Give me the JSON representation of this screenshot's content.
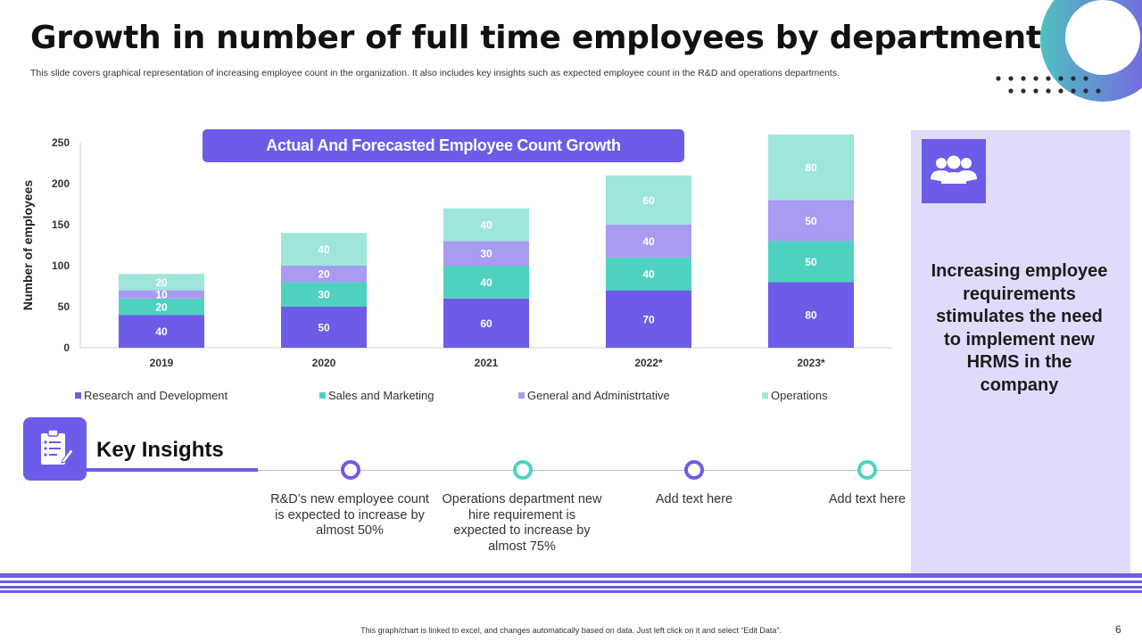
{
  "header": {
    "title": "Growth in number of full time employees by department",
    "subtitle": "This slide covers graphical representation of increasing employee count in the organization. It also includes key insights such as expected employee count in the R&D and operations departments."
  },
  "colors": {
    "accent": "#6c5ce7",
    "teal": "#4fd1c0",
    "lavender": "#a79bf2",
    "mint": "#9ee6dc",
    "panel": "#e0dbfb"
  },
  "chart_data": {
    "type": "bar",
    "stacked": true,
    "title": "Actual And Forecasted Employee Count Growth",
    "xlabel": "",
    "ylabel": "Number of employees",
    "ylim": [
      0,
      250
    ],
    "yticks": [
      0,
      50,
      100,
      150,
      200,
      250
    ],
    "grid": false,
    "legend_position": "bottom",
    "categories": [
      "2019",
      "2020",
      "2021",
      "2022*",
      "2023*"
    ],
    "series": [
      {
        "name": "Research and Development",
        "color": "#6c5ce7",
        "values": [
          40,
          50,
          60,
          70,
          80
        ]
      },
      {
        "name": "Sales and Marketing",
        "color": "#4fd1c0",
        "values": [
          20,
          30,
          40,
          40,
          50
        ]
      },
      {
        "name": "General and Administrtative",
        "color": "#a79bf2",
        "values": [
          10,
          20,
          30,
          40,
          50
        ]
      },
      {
        "name": "Operations",
        "color": "#9ee6dc",
        "values": [
          20,
          40,
          40,
          60,
          80
        ]
      }
    ]
  },
  "side_panel": {
    "icon": "users-group-icon",
    "text": "Increasing employee requirements stimulates the need to implement new HRMS in the company"
  },
  "key_insights": {
    "title": "Key Insights",
    "icon": "clipboard-checklist-icon",
    "items": [
      {
        "text": "R&D’s new employee count is expected to increase by almost 50%",
        "color": "#6c5ce7"
      },
      {
        "text": "Operations department new hire requirement is expected to increase by almost 75%",
        "color": "#4fd1c0"
      },
      {
        "text": "Add text here",
        "color": "#6c5ce7"
      },
      {
        "text": "Add text here",
        "color": "#4fd1c0"
      }
    ]
  },
  "footer": {
    "note": "This graph/chart is linked to excel, and changes automatically based on data. Just left click on it and select “Edit Data”.",
    "page_number": "6"
  }
}
